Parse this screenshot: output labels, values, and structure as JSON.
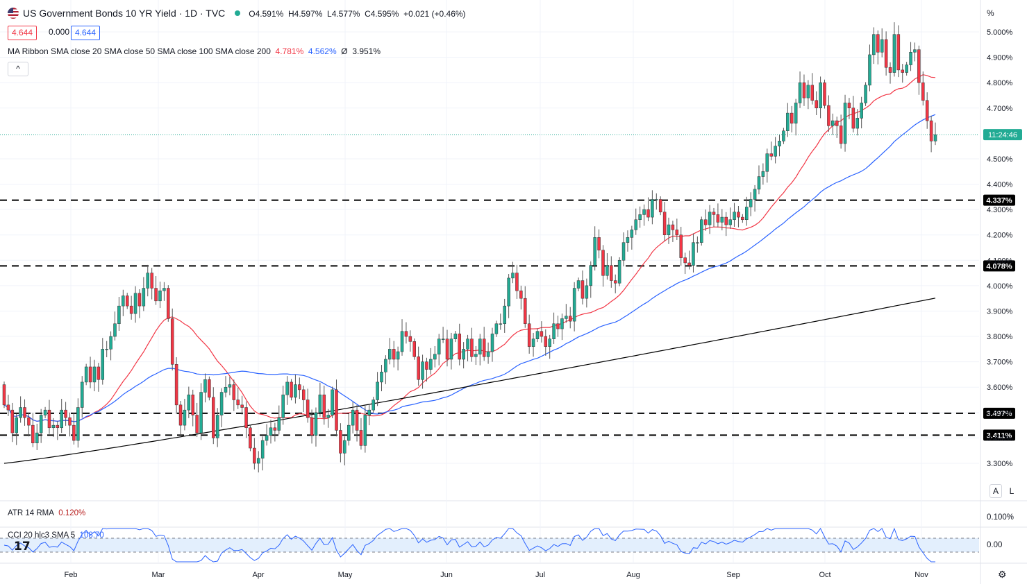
{
  "header": {
    "title": "US Government Bonds 10 YR Yield · 1D · TVC",
    "ohlc": {
      "o": "O4.591%",
      "h": "H4.597%",
      "l": "L4.577%",
      "c": "C4.595%",
      "chg": "+0.021 (+0.46%)"
    },
    "sell": "4.644",
    "spread": "0.000",
    "buy": "4.644",
    "ma_label": "MA Ribbon SMA close 20 SMA close 50 SMA close 100 SMA close 200",
    "ma_v1": "4.781%",
    "ma_v2": "4.562%",
    "ma_v3": "Ø",
    "ma_v4": "3.951%",
    "collapse": "^"
  },
  "colors": {
    "up": "#22ab94",
    "down": "#f23645",
    "sma20": "#f23645",
    "sma50": "#2962ff",
    "sma200": "#000000",
    "atr": "#b71c1c",
    "cci": "#2962ff"
  },
  "indicators": {
    "atr_label": "ATR 14 RMA",
    "atr_value": "0.120%",
    "atr_axis": "0.100%",
    "cci_label": "CCI 20 hlc3 SMA 5",
    "cci_value": "108.70",
    "cci_axis": "0.00"
  },
  "axis": {
    "unit": "%",
    "clock": "11:24:46",
    "scale_a": "A",
    "scale_l": "L"
  },
  "chart_data": {
    "type": "candlestick",
    "title": "US Government Bonds 10 YR Yield",
    "interval": "1D",
    "ylim": [
      3.2,
      5.04
    ],
    "yticks": [
      "5.000%",
      "4.900%",
      "4.800%",
      "4.700%",
      "4.500%",
      "4.400%",
      "4.300%",
      "4.200%",
      "4.100%",
      "4.000%",
      "3.900%",
      "3.800%",
      "3.700%",
      "3.600%",
      "3.500%",
      "3.400%",
      "3.300%"
    ],
    "x_months": [
      "Feb",
      "Mar",
      "Apr",
      "May",
      "Jun",
      "Jul",
      "Aug",
      "Sep",
      "Oct",
      "Nov"
    ],
    "horizontal_levels": [
      4.337,
      4.078,
      3.497,
      3.411
    ],
    "level_labels": [
      "4.337%",
      "4.078%",
      "3.497%",
      "3.411%"
    ],
    "current_price": 4.595,
    "candles": [
      [
        3.61,
        3.53
      ],
      [
        3.53,
        3.51
      ],
      [
        3.51,
        3.42
      ],
      [
        3.42,
        3.48
      ],
      [
        3.48,
        3.52
      ],
      [
        3.52,
        3.48
      ],
      [
        3.48,
        3.45
      ],
      [
        3.45,
        3.38
      ],
      [
        3.38,
        3.42
      ],
      [
        3.42,
        3.49
      ],
      [
        3.49,
        3.51
      ],
      [
        3.51,
        3.44
      ],
      [
        3.44,
        3.45
      ],
      [
        3.45,
        3.44
      ],
      [
        3.44,
        3.51
      ],
      [
        3.51,
        3.48
      ],
      [
        3.48,
        3.45
      ],
      [
        3.45,
        3.39
      ],
      [
        3.39,
        3.52
      ],
      [
        3.52,
        3.62
      ],
      [
        3.62,
        3.68
      ],
      [
        3.68,
        3.62
      ],
      [
        3.62,
        3.68
      ],
      [
        3.68,
        3.63
      ],
      [
        3.63,
        3.75
      ],
      [
        3.75,
        3.75
      ],
      [
        3.75,
        3.8
      ],
      [
        3.8,
        3.85
      ],
      [
        3.85,
        3.92
      ],
      [
        3.92,
        3.96
      ],
      [
        3.96,
        3.92
      ],
      [
        3.92,
        3.89
      ],
      [
        3.89,
        3.97
      ],
      [
        3.97,
        3.92
      ],
      [
        3.92,
        3.99
      ],
      [
        3.99,
        4.05
      ],
      [
        4.05,
        3.99
      ],
      [
        3.99,
        3.94
      ],
      [
        3.94,
        3.98
      ],
      [
        3.98,
        3.99
      ],
      [
        3.99,
        3.87
      ],
      [
        3.87,
        3.69
      ],
      [
        3.69,
        3.53
      ],
      [
        3.53,
        3.45
      ],
      [
        3.45,
        3.51
      ],
      [
        3.51,
        3.57
      ],
      [
        3.57,
        3.49
      ],
      [
        3.49,
        3.42
      ],
      [
        3.42,
        3.58
      ],
      [
        3.58,
        3.63
      ],
      [
        3.63,
        3.56
      ],
      [
        3.56,
        3.4
      ],
      [
        3.4,
        3.49
      ],
      [
        3.49,
        3.58
      ],
      [
        3.58,
        3.6
      ],
      [
        3.6,
        3.61
      ],
      [
        3.61,
        3.55
      ],
      [
        3.55,
        3.53
      ],
      [
        3.53,
        3.52
      ],
      [
        3.52,
        3.44
      ],
      [
        3.44,
        3.36
      ],
      [
        3.36,
        3.3
      ],
      [
        3.3,
        3.32
      ],
      [
        3.32,
        3.39
      ],
      [
        3.39,
        3.41
      ],
      [
        3.41,
        3.44
      ],
      [
        3.44,
        3.43
      ],
      [
        3.43,
        3.48
      ],
      [
        3.48,
        3.57
      ],
      [
        3.57,
        3.62
      ],
      [
        3.62,
        3.56
      ],
      [
        3.56,
        3.61
      ],
      [
        3.61,
        3.59
      ],
      [
        3.59,
        3.55
      ],
      [
        3.55,
        3.48
      ],
      [
        3.48,
        3.41
      ],
      [
        3.41,
        3.5
      ],
      [
        3.5,
        3.57
      ],
      [
        3.57,
        3.48
      ],
      [
        3.48,
        3.49
      ],
      [
        3.49,
        3.59
      ],
      [
        3.59,
        3.43
      ],
      [
        3.43,
        3.34
      ],
      [
        3.34,
        3.39
      ],
      [
        3.39,
        3.45
      ],
      [
        3.45,
        3.51
      ],
      [
        3.51,
        3.43
      ],
      [
        3.43,
        3.37
      ],
      [
        3.37,
        3.49
      ],
      [
        3.49,
        3.51
      ],
      [
        3.51,
        3.55
      ],
      [
        3.55,
        3.62
      ],
      [
        3.62,
        3.66
      ],
      [
        3.66,
        3.71
      ],
      [
        3.71,
        3.75
      ],
      [
        3.75,
        3.71
      ],
      [
        3.71,
        3.74
      ],
      [
        3.74,
        3.82
      ],
      [
        3.82,
        3.8
      ],
      [
        3.8,
        3.78
      ],
      [
        3.78,
        3.72
      ],
      [
        3.72,
        3.63
      ],
      [
        3.63,
        3.7
      ],
      [
        3.7,
        3.67
      ],
      [
        3.67,
        3.71
      ],
      [
        3.71,
        3.73
      ],
      [
        3.73,
        3.79
      ],
      [
        3.79,
        3.79
      ],
      [
        3.79,
        3.71
      ],
      [
        3.71,
        3.79
      ],
      [
        3.79,
        3.81
      ],
      [
        3.81,
        3.71
      ],
      [
        3.71,
        3.75
      ],
      [
        3.75,
        3.79
      ],
      [
        3.79,
        3.72
      ],
      [
        3.72,
        3.73
      ],
      [
        3.73,
        3.79
      ],
      [
        3.79,
        3.72
      ],
      [
        3.72,
        3.74
      ],
      [
        3.74,
        3.81
      ],
      [
        3.81,
        3.85
      ],
      [
        3.85,
        3.85
      ],
      [
        3.85,
        3.92
      ],
      [
        3.92,
        4.03
      ],
      [
        4.03,
        4.05
      ],
      [
        4.05,
        3.98
      ],
      [
        3.98,
        3.95
      ],
      [
        3.95,
        3.85
      ],
      [
        3.85,
        3.76
      ],
      [
        3.76,
        3.79
      ],
      [
        3.79,
        3.82
      ],
      [
        3.82,
        3.8
      ],
      [
        3.8,
        3.76
      ],
      [
        3.76,
        3.79
      ],
      [
        3.79,
        3.85
      ],
      [
        3.85,
        3.83
      ],
      [
        3.83,
        3.87
      ],
      [
        3.87,
        3.88
      ],
      [
        3.88,
        3.86
      ],
      [
        3.86,
        3.99
      ],
      [
        3.99,
        4.02
      ],
      [
        4.02,
        3.95
      ],
      [
        3.95,
        4.0
      ],
      [
        4.0,
        4.08
      ],
      [
        4.08,
        4.19
      ],
      [
        4.19,
        4.14
      ],
      [
        4.14,
        4.04
      ],
      [
        4.04,
        4.08
      ],
      [
        4.08,
        4.02
      ],
      [
        4.02,
        4.01
      ],
      [
        4.01,
        4.1
      ],
      [
        4.1,
        4.17
      ],
      [
        4.17,
        4.19
      ],
      [
        4.19,
        4.22
      ],
      [
        4.22,
        4.26
      ],
      [
        4.26,
        4.28
      ],
      [
        4.28,
        4.3
      ],
      [
        4.3,
        4.27
      ],
      [
        4.27,
        4.34
      ],
      [
        4.34,
        4.34
      ],
      [
        4.34,
        4.29
      ],
      [
        4.29,
        4.2
      ],
      [
        4.2,
        4.24
      ],
      [
        4.24,
        4.22
      ],
      [
        4.22,
        4.2
      ],
      [
        4.2,
        4.11
      ],
      [
        4.11,
        4.09
      ],
      [
        4.09,
        4.08
      ],
      [
        4.08,
        4.17
      ],
      [
        4.17,
        4.17
      ],
      [
        4.17,
        4.26
      ],
      [
        4.26,
        4.24
      ],
      [
        4.24,
        4.29
      ],
      [
        4.29,
        4.28
      ],
      [
        4.28,
        4.25
      ],
      [
        4.25,
        4.27
      ],
      [
        4.27,
        4.24
      ],
      [
        4.24,
        4.26
      ],
      [
        4.26,
        4.29
      ],
      [
        4.29,
        4.27
      ],
      [
        4.27,
        4.26
      ],
      [
        4.26,
        4.31
      ],
      [
        4.31,
        4.34
      ],
      [
        4.34,
        4.38
      ],
      [
        4.38,
        4.43
      ],
      [
        4.43,
        4.45
      ],
      [
        4.45,
        4.52
      ],
      [
        4.52,
        4.51
      ],
      [
        4.51,
        4.55
      ],
      [
        4.55,
        4.57
      ],
      [
        4.57,
        4.61
      ],
      [
        4.61,
        4.68
      ],
      [
        4.68,
        4.64
      ],
      [
        4.64,
        4.72
      ],
      [
        4.72,
        4.8
      ],
      [
        4.8,
        4.74
      ],
      [
        4.74,
        4.79
      ],
      [
        4.79,
        4.73
      ],
      [
        4.73,
        4.7
      ],
      [
        4.7,
        4.8
      ],
      [
        4.8,
        4.71
      ],
      [
        4.71,
        4.63
      ],
      [
        4.63,
        4.65
      ],
      [
        4.65,
        4.63
      ],
      [
        4.63,
        4.56
      ],
      [
        4.56,
        4.72
      ],
      [
        4.72,
        4.7
      ],
      [
        4.7,
        4.62
      ],
      [
        4.62,
        4.66
      ],
      [
        4.66,
        4.72
      ],
      [
        4.72,
        4.79
      ],
      [
        4.79,
        4.91
      ],
      [
        4.91,
        4.99
      ],
      [
        4.99,
        4.92
      ],
      [
        4.92,
        4.97
      ],
      [
        4.97,
        4.86
      ],
      [
        4.86,
        4.84
      ],
      [
        4.84,
        4.99
      ],
      [
        4.99,
        4.85
      ],
      [
        4.85,
        4.84
      ],
      [
        4.84,
        4.87
      ],
      [
        4.87,
        4.92
      ],
      [
        4.92,
        4.93
      ],
      [
        4.93,
        4.8
      ],
      [
        4.8,
        4.73
      ],
      [
        4.73,
        4.65
      ],
      [
        4.65,
        4.57
      ],
      [
        4.57,
        4.595
      ]
    ],
    "sma20_last": 4.781,
    "sma50_last": 4.562,
    "sma200_last": 3.951,
    "atr_last": 0.12,
    "cci_last": 108.7
  }
}
